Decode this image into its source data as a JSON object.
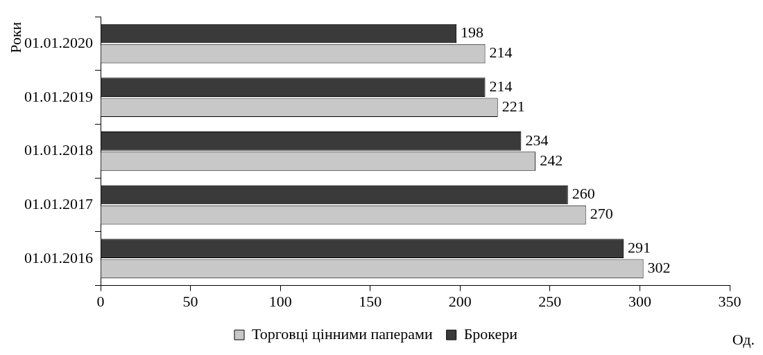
{
  "chart_data": {
    "type": "bar",
    "orientation": "horizontal",
    "xlabel": "Од.",
    "ylabel": "Роки",
    "categories": [
      "01.01.2020",
      "01.01.2019",
      "01.01.2018",
      "01.01.2017",
      "01.01.2016"
    ],
    "series": [
      {
        "name": "Торговці цінними паперами",
        "color": "#c8c8c8",
        "values": [
          214,
          221,
          242,
          270,
          302
        ]
      },
      {
        "name": "Брокери",
        "color": "#3a3a3a",
        "values": [
          198,
          214,
          234,
          260,
          291
        ]
      }
    ],
    "xlim": [
      0,
      350
    ],
    "xticks": [
      0,
      50,
      100,
      150,
      200,
      250,
      300,
      350
    ],
    "grid": false,
    "legend": "bottom",
    "data_labels": true
  }
}
